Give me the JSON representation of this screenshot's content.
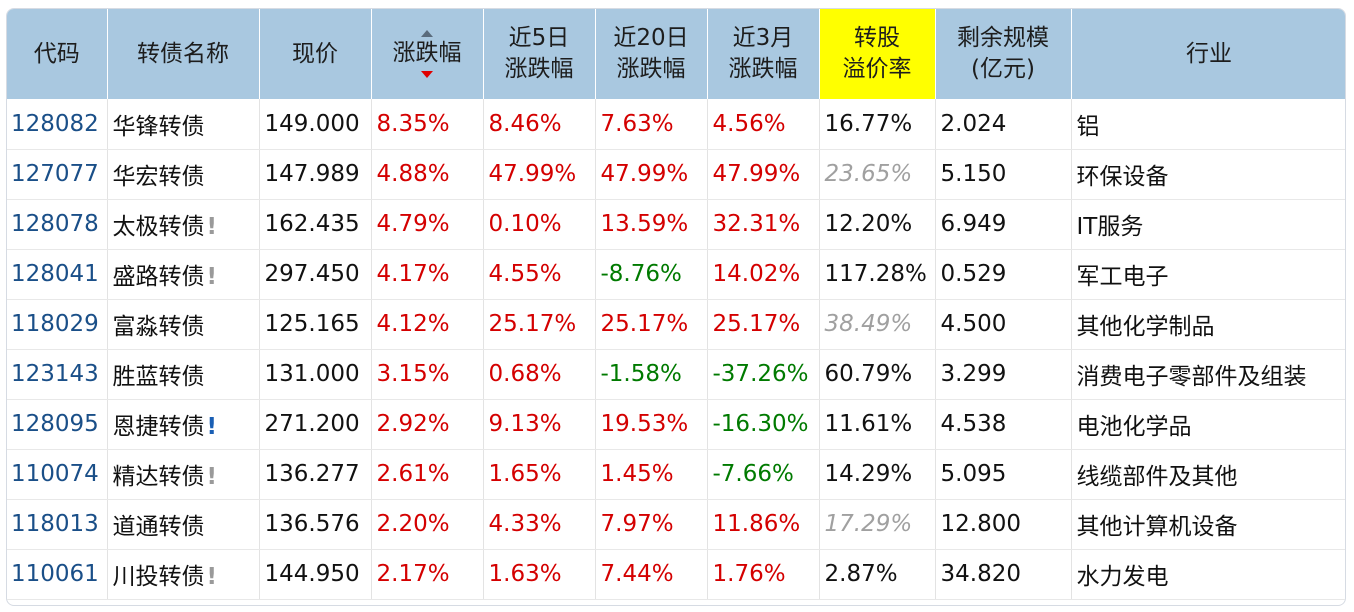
{
  "headers": {
    "code": "代码",
    "name": "转债名称",
    "price": "现价",
    "change": "涨跌幅",
    "chg5": [
      "近5日",
      "涨跌幅"
    ],
    "chg20": [
      "近20日",
      "涨跌幅"
    ],
    "chg3m": [
      "近3月",
      "涨跌幅"
    ],
    "premium": [
      "转股",
      "溢价率"
    ],
    "scale": [
      "剩余规模",
      "(亿元)"
    ],
    "industry": "行业"
  },
  "colors": {
    "header_bg": "#a9c8e0",
    "header_highlight": "#ffff00",
    "up": "#d40000",
    "down": "#007a00",
    "code": "#1a4f88"
  },
  "rows": [
    {
      "code": "128082",
      "name": "华锋转债",
      "flag": "",
      "price": "149.000",
      "change": "8.35%",
      "chg5": "8.46%",
      "chg20": "7.63%",
      "chg3m": "4.56%",
      "premium": "16.77%",
      "premium_muted": false,
      "scale": "2.024",
      "industry": "铝"
    },
    {
      "code": "127077",
      "name": "华宏转债",
      "flag": "",
      "price": "147.989",
      "change": "4.88%",
      "chg5": "47.99%",
      "chg20": "47.99%",
      "chg3m": "47.99%",
      "premium": "23.65%",
      "premium_muted": true,
      "scale": "5.150",
      "industry": "环保设备"
    },
    {
      "code": "128078",
      "name": "太极转债",
      "flag": "!",
      "price": "162.435",
      "change": "4.79%",
      "chg5": "0.10%",
      "chg20": "13.59%",
      "chg3m": "32.31%",
      "premium": "12.20%",
      "premium_muted": false,
      "scale": "6.949",
      "industry": "IT服务"
    },
    {
      "code": "128041",
      "name": "盛路转债",
      "flag": "!",
      "price": "297.450",
      "change": "4.17%",
      "chg5": "4.55%",
      "chg20": "-8.76%",
      "chg3m": "14.02%",
      "premium": "117.28%",
      "premium_muted": false,
      "scale": "0.529",
      "industry": "军工电子"
    },
    {
      "code": "118029",
      "name": "富淼转债",
      "flag": "",
      "price": "125.165",
      "change": "4.12%",
      "chg5": "25.17%",
      "chg20": "25.17%",
      "chg3m": "25.17%",
      "premium": "38.49%",
      "premium_muted": true,
      "scale": "4.500",
      "industry": "其他化学制品"
    },
    {
      "code": "123143",
      "name": "胜蓝转债",
      "flag": "",
      "price": "131.000",
      "change": "3.15%",
      "chg5": "0.68%",
      "chg20": "-1.58%",
      "chg3m": "-37.26%",
      "premium": "60.79%",
      "premium_muted": false,
      "scale": "3.299",
      "industry": "消费电子零部件及组装"
    },
    {
      "code": "128095",
      "name": "恩捷转债",
      "flag": "!",
      "flag_blue": true,
      "price": "271.200",
      "change": "2.92%",
      "chg5": "9.13%",
      "chg20": "19.53%",
      "chg3m": "-16.30%",
      "premium": "11.61%",
      "premium_muted": false,
      "scale": "4.538",
      "industry": "电池化学品"
    },
    {
      "code": "110074",
      "name": "精达转债",
      "flag": "!",
      "price": "136.277",
      "change": "2.61%",
      "chg5": "1.65%",
      "chg20": "1.45%",
      "chg3m": "-7.66%",
      "premium": "14.29%",
      "premium_muted": false,
      "scale": "5.095",
      "industry": "线缆部件及其他"
    },
    {
      "code": "118013",
      "name": "道通转债",
      "flag": "",
      "price": "136.576",
      "change": "2.20%",
      "chg5": "4.33%",
      "chg20": "7.97%",
      "chg3m": "11.86%",
      "premium": "17.29%",
      "premium_muted": true,
      "scale": "12.800",
      "industry": "其他计算机设备"
    },
    {
      "code": "110061",
      "name": "川投转债",
      "flag": "!",
      "price": "144.950",
      "change": "2.17%",
      "chg5": "1.63%",
      "chg20": "7.44%",
      "chg3m": "1.76%",
      "premium": "2.87%",
      "premium_muted": false,
      "scale": "34.820",
      "industry": "水力发电"
    }
  ]
}
